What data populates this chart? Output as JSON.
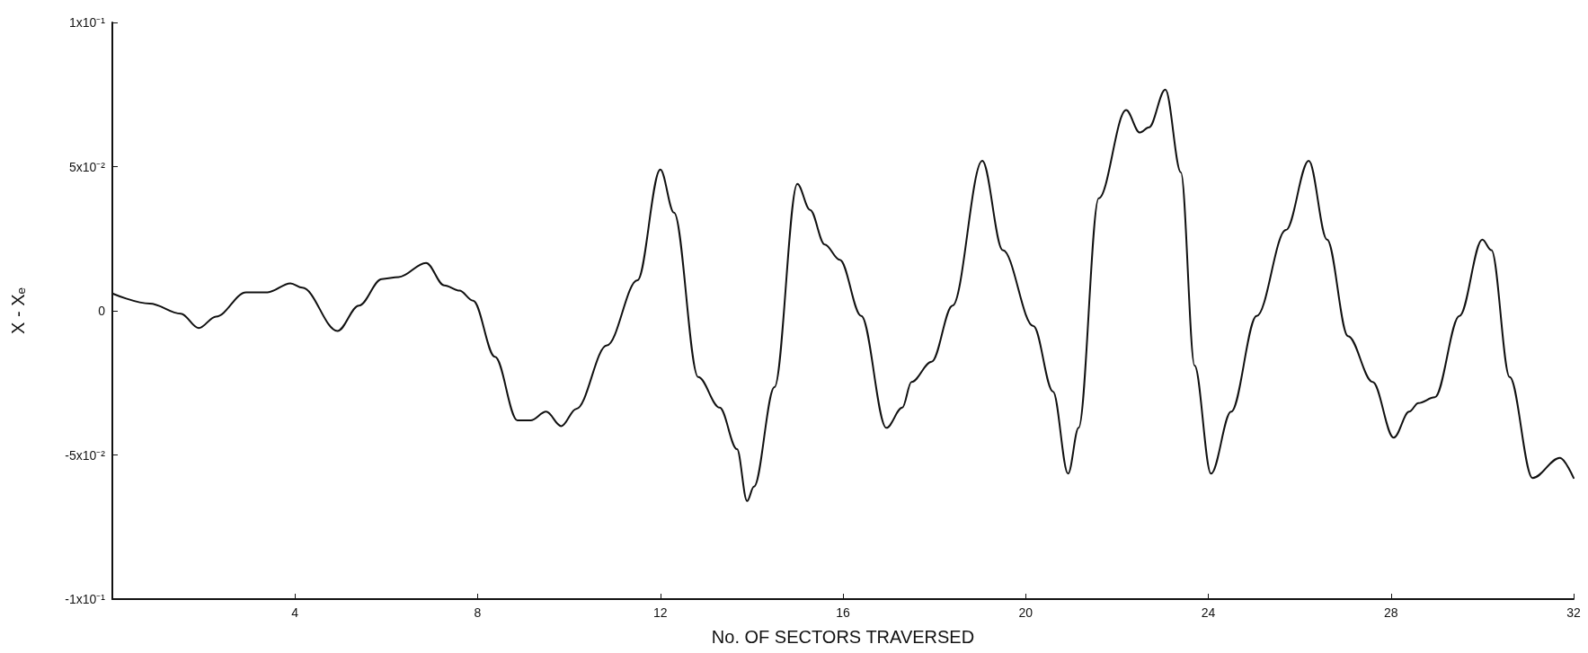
{
  "chart_data": {
    "type": "line",
    "xlabel": "No. OF SECTORS TRAVERSED",
    "ylabel": "X - Xₑ",
    "xlim": [
      0,
      32
    ],
    "xticks": [
      4,
      8,
      12,
      16,
      20,
      24,
      28,
      32
    ],
    "ylim": [
      -0.1,
      0.1
    ],
    "yticks": [
      {
        "value": -0.1,
        "label": "-1x10⁻¹"
      },
      {
        "value": -0.05,
        "label": "-5x10⁻²"
      },
      {
        "value": 0,
        "label": "0"
      },
      {
        "value": 0.05,
        "label": "5x10⁻²"
      },
      {
        "value": 0.1,
        "label": "1x10⁻¹"
      }
    ],
    "grid": false,
    "marker": "none",
    "line_style": "solid",
    "series": [
      {
        "color": "#111111",
        "x": [
          0,
          0.82,
          1.5,
          1.89,
          2.27,
          2.93,
          3.4,
          3.9,
          4.16,
          4.93,
          5.4,
          5.9,
          6.27,
          6.87,
          7.27,
          7.6,
          7.9,
          8.38,
          8.87,
          9.16,
          9.5,
          9.83,
          10.16,
          10.83,
          11.5,
          12.0,
          12.3,
          12.83,
          13.3,
          13.68,
          13.9,
          14.05,
          14.5,
          15.0,
          15.28,
          15.6,
          15.93,
          16.4,
          16.95,
          17.3,
          17.5,
          17.94,
          18.4,
          19.05,
          19.5,
          20.17,
          20.6,
          20.93,
          21.16,
          21.6,
          22.2,
          22.5,
          22.7,
          23.06,
          23.4,
          23.7,
          24.06,
          24.5,
          25.06,
          25.7,
          26.2,
          26.6,
          27.06,
          27.6,
          28.06,
          28.4,
          28.6,
          28.96,
          29.5,
          30.0,
          30.2,
          30.6,
          31.1,
          31.7,
          32
        ],
        "values": [
          0.006,
          0.0025,
          -0.001,
          -0.006,
          -0.002,
          0.0064,
          0.0064,
          0.0095,
          0.008,
          -0.007,
          0.0018,
          0.011,
          0.0117,
          0.0166,
          0.0088,
          0.007,
          0.0035,
          -0.016,
          -0.038,
          -0.038,
          -0.035,
          -0.04,
          -0.034,
          -0.012,
          0.0106,
          0.049,
          0.034,
          -0.023,
          -0.0336,
          -0.048,
          -0.066,
          -0.061,
          -0.0265,
          0.044,
          0.035,
          0.023,
          0.0177,
          -0.0018,
          -0.0406,
          -0.0336,
          -0.0247,
          -0.0177,
          0.0018,
          0.052,
          0.021,
          -0.0053,
          -0.028,
          -0.0565,
          -0.0406,
          0.039,
          0.0696,
          0.0618,
          0.0636,
          0.0767,
          0.048,
          -0.019,
          -0.0565,
          -0.035,
          -0.0018,
          0.028,
          0.052,
          0.0247,
          -0.0088,
          -0.0247,
          -0.044,
          -0.035,
          -0.032,
          -0.03,
          -0.0018,
          0.0247,
          0.021,
          -0.023,
          -0.058,
          -0.051,
          -0.058
        ]
      }
    ]
  }
}
